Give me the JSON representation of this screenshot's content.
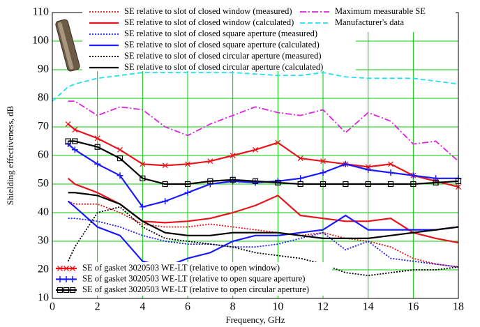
{
  "chart_data": {
    "type": "line",
    "x_label": "Frequency, GHz",
    "y_label": "Shielding effectiveness, dB",
    "xlim": [
      0,
      18
    ],
    "ylim": [
      10,
      110
    ],
    "xticks": [
      0,
      2,
      4,
      6,
      8,
      10,
      12,
      14,
      16,
      18
    ],
    "yticks": [
      10,
      20,
      30,
      40,
      50,
      60,
      70,
      80,
      90,
      100,
      110
    ],
    "grid": true,
    "grid_color": "#00cc00",
    "x": [
      0.7,
      1,
      2,
      3,
      4,
      5,
      6,
      7,
      8,
      9,
      10,
      11,
      12,
      13,
      14,
      15,
      16,
      17,
      18
    ],
    "series": [
      {
        "name": "SE relative to slot of closed window (measured)",
        "color": "#e8141b",
        "style": "dotted",
        "legend": "top-left",
        "values": [
          44,
          43,
          43,
          40,
          36,
          35,
          35,
          36,
          35,
          34,
          33,
          32,
          33,
          31,
          30,
          28,
          24,
          22,
          21
        ]
      },
      {
        "name": "SE relative to slot of closed window (calculated)",
        "color": "#e8141b",
        "style": "solid",
        "legend": "top-left",
        "values": [
          52,
          50,
          47,
          43,
          37,
          36.5,
          37,
          38,
          40,
          42.5,
          46,
          39,
          38,
          37,
          37,
          38,
          33,
          31,
          29.5
        ]
      },
      {
        "name": "SE relative to slot of closed square aperture (measured)",
        "color": "#1a1aff",
        "style": "dotted",
        "legend": "top-left",
        "values": [
          38,
          38,
          37,
          35,
          32,
          30,
          29,
          29,
          28,
          28,
          29,
          31,
          33,
          27,
          30,
          24,
          23,
          22,
          21
        ]
      },
      {
        "name": "SE relative to slot of closed square aperture (calculated)",
        "color": "#1a1aff",
        "style": "solid",
        "legend": "top-left",
        "values": [
          44,
          42,
          35,
          32,
          23,
          21,
          24,
          26,
          30,
          32,
          32,
          33,
          34,
          39,
          34,
          34,
          34,
          34,
          35
        ]
      },
      {
        "name": "SE relative to slot of closed circular aperture (measured)",
        "color": "#000000",
        "style": "dotted",
        "legend": "top-left",
        "values": [
          23,
          28,
          40,
          42,
          35,
          31,
          30,
          29,
          28,
          26,
          25,
          24,
          22,
          19,
          18,
          19,
          20,
          20,
          21
        ]
      },
      {
        "name": "SE relative to slot of closed circular aperture (calculated)",
        "color": "#000000",
        "style": "solid",
        "legend": "top-left",
        "values": [
          47,
          47,
          46,
          43,
          37,
          33,
          32,
          32,
          33,
          33,
          33,
          32,
          31,
          31,
          31,
          32,
          33,
          34,
          35
        ]
      },
      {
        "name": "Maximum measurable SE",
        "color": "#e020e0",
        "style": "dashdot",
        "legend": "top-right",
        "values": [
          79,
          79,
          74,
          77,
          76,
          70,
          67,
          71,
          74,
          77,
          75,
          74,
          76,
          68,
          75,
          72,
          64,
          65,
          58
        ]
      },
      {
        "name": "Manufacturer's data",
        "color": "#20e0f0",
        "style": "dashed",
        "legend": "top-right",
        "x": [
          0,
          0.7,
          1,
          2,
          3,
          4,
          5,
          6,
          7,
          8,
          9,
          10,
          11,
          12,
          13,
          14,
          15,
          16,
          17,
          18
        ],
        "values": [
          79,
          84,
          85,
          87,
          88,
          89,
          89,
          89,
          89,
          89,
          88.5,
          88,
          88,
          89,
          87.5,
          87,
          87,
          87,
          86,
          85
        ]
      },
      {
        "name": "SE of gasket 3020503 WE-LT (relative to open window)",
        "color": "#e8141b",
        "style": "solid",
        "marker": "x",
        "legend": "bottom-left",
        "values": [
          71,
          69,
          66,
          62,
          57,
          56.5,
          57,
          58,
          60,
          62,
          64.5,
          59,
          58,
          57,
          56,
          57,
          53,
          51,
          49
        ]
      },
      {
        "name": "SE of gasket 3020503 WE-LT (relative to open square aperture)",
        "color": "#1a1aff",
        "style": "solid",
        "marker": "+",
        "legend": "bottom-left",
        "values": [
          64,
          62,
          57,
          53,
          42,
          44,
          47,
          50,
          51,
          50.5,
          51,
          52,
          54,
          57,
          55,
          54,
          53,
          52,
          52
        ]
      },
      {
        "name": "SE of gasket 3020503 WE-LT (relative to open circular aperture)",
        "color": "#000000",
        "style": "solid",
        "marker": "square",
        "legend": "bottom-left",
        "values": [
          65,
          65,
          63,
          59,
          52,
          50,
          50,
          51,
          51.5,
          51,
          50.5,
          50,
          50,
          50,
          50,
          50,
          50,
          50.5,
          51
        ]
      }
    ]
  }
}
